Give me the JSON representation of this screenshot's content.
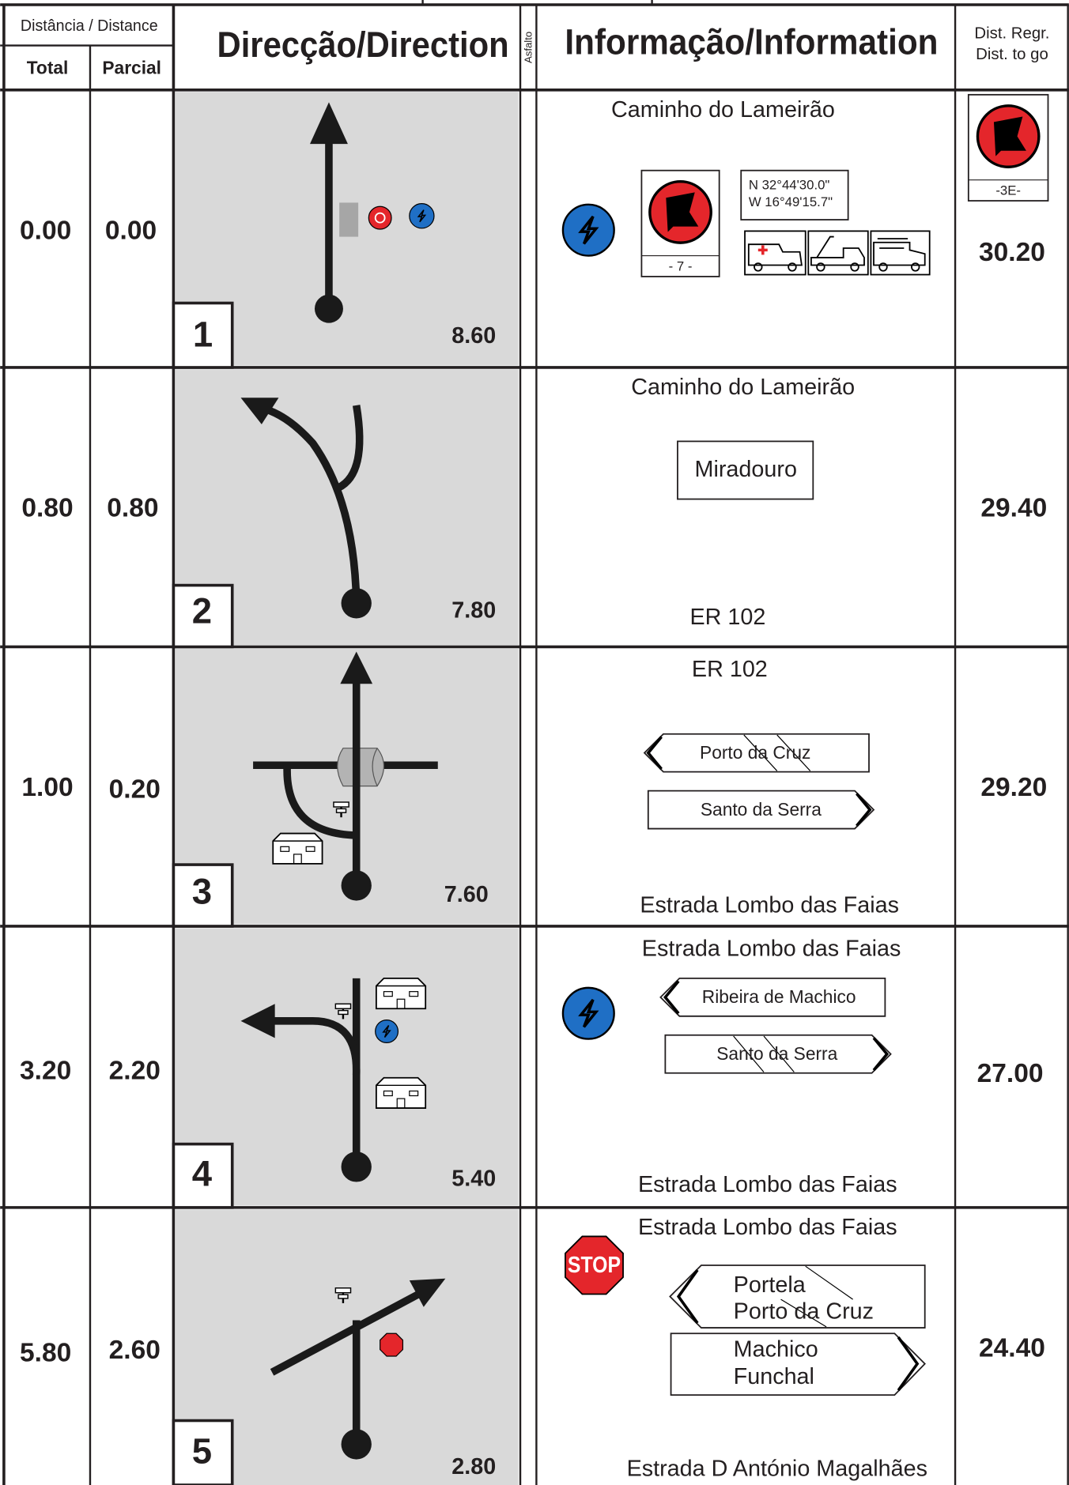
{
  "header": {
    "distance": "Distância / Distance",
    "total": "Total",
    "partial": "Parcial",
    "direction": "Direcção/Direction",
    "asphalt": "Asfalto",
    "information": "Informação/Information",
    "dist_regr": "Dist. Regr.",
    "dist_to_go": "Dist. to go"
  },
  "rows": [
    {
      "total": "0.00",
      "partial": "0.00",
      "number": "1",
      "remaining": "8.60",
      "info_top": "Caminho do Lameirão",
      "coord_n": "N  32°44'30.0\"",
      "coord_w": "W 16°49'15.7\"",
      "flag_label": "- 7 -",
      "to_go_flag": "-3E-",
      "to_go": "30.20"
    },
    {
      "total": "0.80",
      "partial": "0.80",
      "number": "2",
      "remaining": "7.80",
      "info_top": "Caminho do Lameirão",
      "sign": "Miradouro",
      "info_bottom": "ER 102",
      "to_go": "29.40"
    },
    {
      "total": "1.00",
      "partial": "0.20",
      "number": "3",
      "remaining": "7.60",
      "info_top": "ER 102",
      "sign_left": "Porto da Cruz",
      "sign_right": "Santo da Serra",
      "info_bottom": "Estrada Lombo das Faias",
      "to_go": "29.20"
    },
    {
      "total": "3.20",
      "partial": "2.20",
      "number": "4",
      "remaining": "5.40",
      "info_top": "Estrada Lombo das Faias",
      "sign_left": "Ribeira de Machico",
      "sign_right": "Santo da Serra",
      "info_bottom": "Estrada Lombo das Faias",
      "to_go": "27.00"
    },
    {
      "total": "5.80",
      "partial": "2.60",
      "number": "5",
      "remaining": "2.80",
      "info_top": "Estrada Lombo das Faias",
      "stop": "STOP",
      "sign_left": [
        "Portela",
        "Porto da Cruz"
      ],
      "sign_right": [
        "Machico",
        "Funchal"
      ],
      "info_bottom": "Estrada D António Magalhães",
      "to_go": "24.40"
    }
  ]
}
